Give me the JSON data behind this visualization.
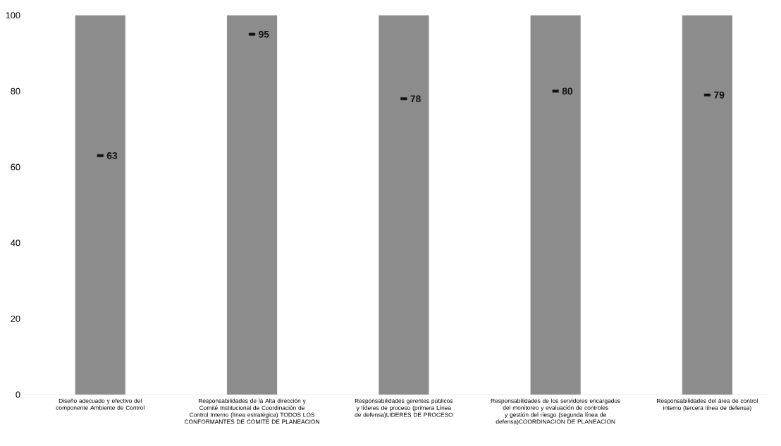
{
  "chart_data": {
    "type": "bar",
    "categories": [
      "Diseño adecuado y efectivo del componente Ambiente de Control",
      "Responsabilidades de la Alta dirección y Comité Institucional de Coordinación de Control Interno (línea estratégica) TODOS LOS CONFORMANTES DE COMITE DE PLANEACION",
      "Responsabilidades gerentes públicos y líderes de proceso (primera Línea de defensa)LIDERES DE PROCESO",
      "Responsabilidades de los servidores encargados del monitoreo y evaluación de controles y gestión del riesgo (segunda línea de defensa)COORDINACION DE PLANEACION",
      "Responsabilidades del área de control interno (tercera línea de defensa)"
    ],
    "series": [
      {
        "color": "#8c8c8c",
        "values": [
          100,
          100,
          100,
          100,
          100
        ]
      },
      {
        "type": "scatter",
        "color": "#111111",
        "values": [
          63,
          95,
          78,
          80,
          79
        ],
        "data_labels": true,
        "marker": "square"
      }
    ],
    "ylim": [
      0,
      100
    ],
    "yticks": [
      0,
      20,
      40,
      60,
      80,
      100
    ]
  }
}
